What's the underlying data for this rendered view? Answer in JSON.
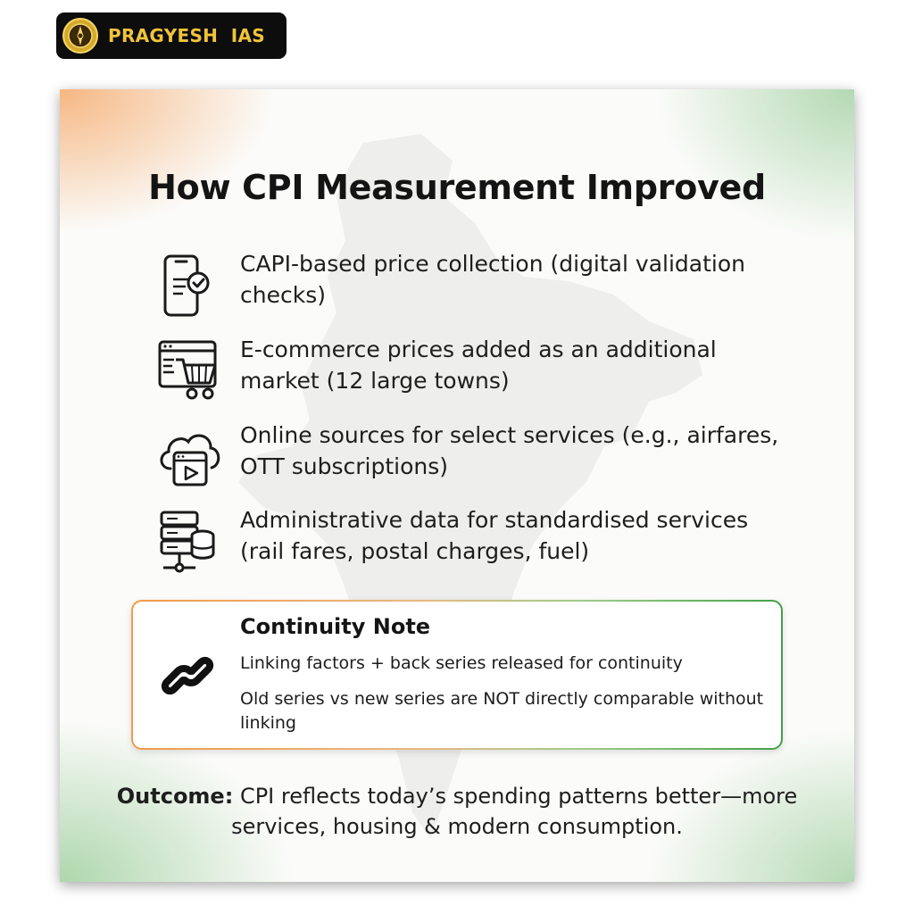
{
  "logo": {
    "text": "PRAGYESH  IAS",
    "emblem_icon": "golden-emblem-icon",
    "colors": {
      "badge_bg": "#0d0d0d",
      "text": "#f0c43a"
    }
  },
  "card": {
    "title": "How CPI Measurement Improved",
    "background_icon": "india-map-silhouette",
    "colors": {
      "saffron": "#f29a4a",
      "green": "#43a047"
    }
  },
  "features": [
    {
      "icon": "smartphone-checkmark-icon",
      "text": "CAPI-based price collection (digital validation checks)"
    },
    {
      "icon": "ecommerce-cart-icon",
      "text": "E-commerce prices added as an additional market (12 large towns)"
    },
    {
      "icon": "cloud-video-icon",
      "text": "Online sources for select services (e.g., airfares, OTT subscriptions)"
    },
    {
      "icon": "database-server-icon",
      "text": "Administrative data for standardised services (rail fares, postal charges, fuel)"
    }
  ],
  "continuity_note": {
    "icon": "chain-link-icon",
    "title": "Continuity Note",
    "line1": "Linking factors + back series released for continuity",
    "line2": "Old series vs new series are NOT directly comparable without linking"
  },
  "outcome": {
    "label": "Outcome:",
    "text": " CPI reflects today’s spending patterns better—more services, housing & modern consumption."
  }
}
